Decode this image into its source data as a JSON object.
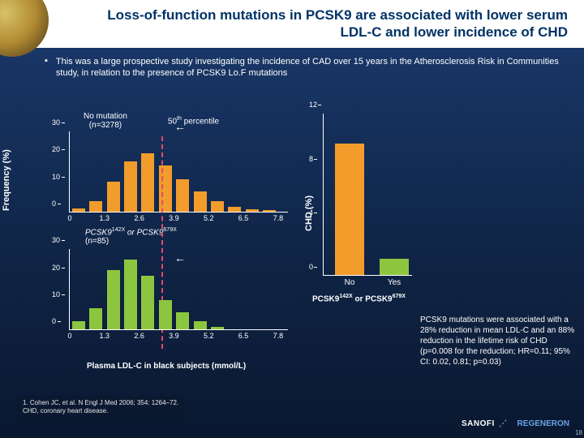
{
  "title": "Loss-of-function mutations in PCSK9 are associated with lower serum LDL-C and lower incidence of CHD",
  "bullet": "This was a large prospective study investigating the incidence of CAD over 15 years in the Atherosclerosis Risk in Communities study, in relation to the presence of PCSK9 Lo.F mutations",
  "yAxisLabel": "Frequency (%)",
  "xAxisLabel": "Plasma LDL-C in black subjects (mmol/L)",
  "percentileLabel": "50",
  "percentileSuffix": " percentile",
  "chart1": {
    "label_line1": "No mutation",
    "label_line2": "(n=3278)",
    "barColor": "#f29c2c",
    "yTicks": [
      0,
      10,
      20,
      30
    ],
    "yMax": 30,
    "xTicks": [
      0,
      1.3,
      2.6,
      3.9,
      5.2,
      6.5,
      7.8
    ],
    "xMax": 8.2,
    "binStep": 0.65,
    "bars": [
      {
        "x": 0.325,
        "h": 1.2
      },
      {
        "x": 0.975,
        "h": 4
      },
      {
        "x": 1.625,
        "h": 11
      },
      {
        "x": 2.275,
        "h": 18.5
      },
      {
        "x": 2.925,
        "h": 21.5
      },
      {
        "x": 3.575,
        "h": 17
      },
      {
        "x": 4.225,
        "h": 12
      },
      {
        "x": 4.875,
        "h": 7.5
      },
      {
        "x": 5.525,
        "h": 4
      },
      {
        "x": 6.175,
        "h": 1.8
      },
      {
        "x": 6.825,
        "h": 1
      },
      {
        "x": 7.475,
        "h": 0.5
      }
    ]
  },
  "chart2": {
    "label": "PCSK9",
    "sup1": "142X",
    "mid": " or PCSK9",
    "sup2": "679X",
    "label_n": "(n=85)",
    "barColor": "#8cc63f",
    "yTicks": [
      0,
      10,
      20,
      30
    ],
    "yMax": 30,
    "bars": [
      {
        "x": 0.325,
        "h": 3
      },
      {
        "x": 0.975,
        "h": 8
      },
      {
        "x": 1.625,
        "h": 22
      },
      {
        "x": 2.275,
        "h": 26
      },
      {
        "x": 2.925,
        "h": 20
      },
      {
        "x": 3.575,
        "h": 11
      },
      {
        "x": 4.225,
        "h": 6.5
      },
      {
        "x": 4.875,
        "h": 3
      },
      {
        "x": 5.525,
        "h": 1
      }
    ]
  },
  "barRight": {
    "yLabel": "CHD (%)",
    "yTicks": [
      0,
      4,
      8,
      12
    ],
    "yMax": 12,
    "bars": [
      {
        "label": "No",
        "val": 9.7,
        "color": "#f29c2c"
      },
      {
        "label": "Yes",
        "val": 1.2,
        "color": "#8cc63f"
      }
    ],
    "legend_pre": "PCSK9",
    "legend_sup1": "142X",
    "legend_mid": " or PCSK9",
    "legend_sup2": "679X"
  },
  "rightNote": "PCSK9 mutations were associated with a 28% reduction in mean LDL-C and an 88% reduction in the lifetime risk of CHD (p=0.008 for the reduction; HR=0.11; 95% CI: 0.02, 0.81; p=0.03)",
  "footnote_line1": "1. Cohen JC, et al. N Engl J Med 2006; 354: 1264–72.",
  "footnote_line2": "CHD, coronary heart disease.",
  "logo1": "SANOFI",
  "logo2": "REGENERON",
  "pageNum": "18"
}
